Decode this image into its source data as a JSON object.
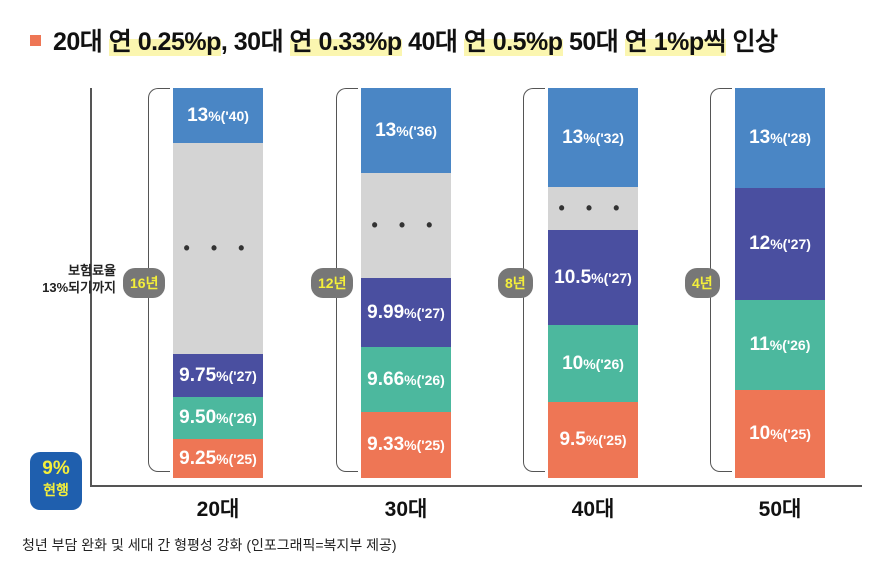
{
  "title": {
    "parts": [
      {
        "text": "20대 ",
        "hl": false
      },
      {
        "text": "연 0.25%p",
        "hl": true
      },
      {
        "text": ", 30대 ",
        "hl": false
      },
      {
        "text": "연 0.33%p",
        "hl": true
      },
      {
        "text": " 40대 ",
        "hl": false
      },
      {
        "text": "연 0.5%p",
        "hl": true
      },
      {
        "text": " 50대 ",
        "hl": false
      },
      {
        "text": "연 1%p씩",
        "hl": true
      },
      {
        "text": " 인상",
        "hl": false
      }
    ]
  },
  "y_label": [
    "보험료율",
    "13%되기까지"
  ],
  "current": {
    "value": "9%",
    "label": "현행"
  },
  "caption": "청년 부담 완화 및 세대 간 형평성 강화 (인포그래픽=복지부 제공)",
  "colors": {
    "top": "#4a86c5",
    "navy": "#4a4fa0",
    "teal": "#4cb89e",
    "orange": "#ee7655",
    "gap": "#d4d4d4"
  },
  "chart_data": {
    "type": "bar",
    "categories": [
      "20대",
      "30대",
      "40대",
      "50대"
    ],
    "years_to_13": [
      "16년",
      "12년",
      "8년",
      "4년"
    ],
    "series": [
      {
        "category": "20대",
        "steps": [
          {
            "rate": "9.25%",
            "year": "('25)"
          },
          {
            "rate": "9.50%",
            "year": "('26)"
          },
          {
            "rate": "9.75%",
            "year": "('27)"
          },
          {
            "rate": "…",
            "year": ""
          },
          {
            "rate": "13%",
            "year": "('40)"
          }
        ]
      },
      {
        "category": "30대",
        "steps": [
          {
            "rate": "9.33%",
            "year": "('25)"
          },
          {
            "rate": "9.66%",
            "year": "('26)"
          },
          {
            "rate": "9.99%",
            "year": "('27)"
          },
          {
            "rate": "…",
            "year": ""
          },
          {
            "rate": "13%",
            "year": "('36)"
          }
        ]
      },
      {
        "category": "40대",
        "steps": [
          {
            "rate": "9.5%",
            "year": "('25)"
          },
          {
            "rate": "10%",
            "year": "('26)"
          },
          {
            "rate": "10.5%",
            "year": "('27)"
          },
          {
            "rate": "…",
            "year": ""
          },
          {
            "rate": "13%",
            "year": "('32)"
          }
        ]
      },
      {
        "category": "50대",
        "steps": [
          {
            "rate": "10%",
            "year": "('25)"
          },
          {
            "rate": "11%",
            "year": "('26)"
          },
          {
            "rate": "12%",
            "year": "('27)"
          },
          {
            "rate": "13%",
            "year": "('28)"
          }
        ]
      }
    ]
  }
}
